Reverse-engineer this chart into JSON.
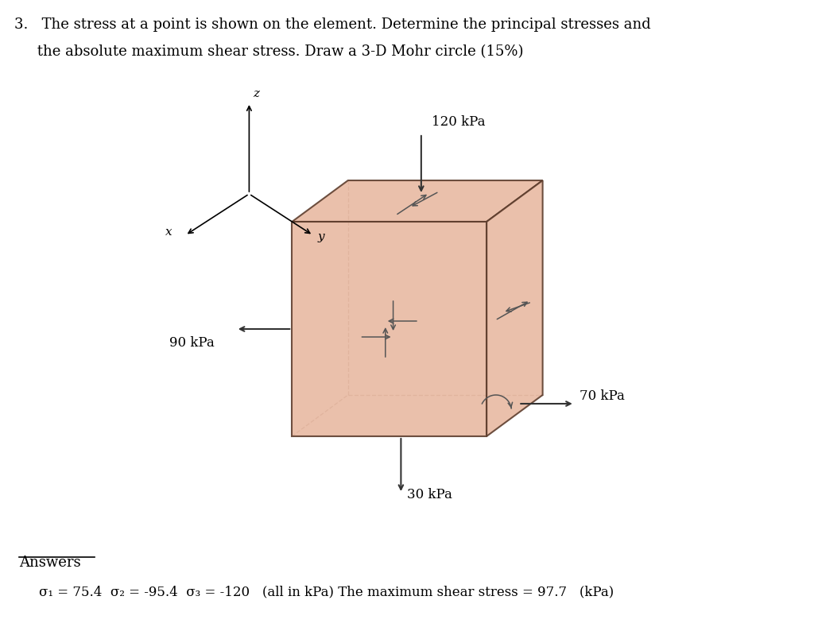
{
  "bg_color": "#ffffff",
  "title_line1": "3.   The stress at a point is shown on the element. Determine the principal stresses and",
  "title_line2": "     the absolute maximum shear stress. Draw a 3-D Mohr circle (15%)",
  "answers_label": "Answers",
  "answers_text": "σ₁ = 75.4  σ₂ = -95.4  σ₃ = -120   (all in kPa) The maximum shear stress = 97.7   (kPa)",
  "cube_color": "#e8b8a0",
  "cube_edge_color": "#5a3a2a",
  "stress_top": "120 kPa",
  "stress_bottom": "30 kPa",
  "stress_left": "90 kPa",
  "stress_right": "70 kPa",
  "font_size_title": 13,
  "font_size_stress": 12,
  "font_size_answers": 12
}
